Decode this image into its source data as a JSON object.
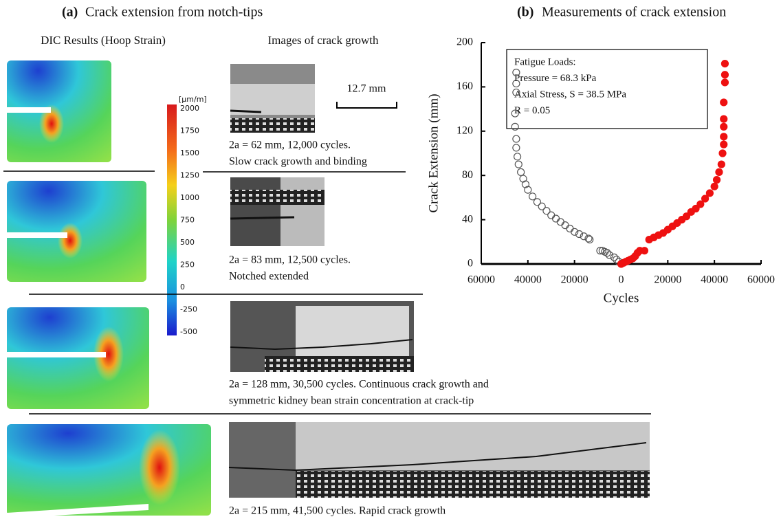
{
  "panel_a": {
    "label": "(a)",
    "title": "Crack extension from notch-tips",
    "dic_header": "DIC Results (Hoop Strain)",
    "images_header": "Images of crack growth",
    "scale_label": "12.7 mm",
    "colorbar": {
      "unit": "[µm/m]",
      "ticks": [
        2000,
        1750,
        1500,
        1250,
        1000,
        750,
        500,
        250,
        0,
        -250,
        -500
      ]
    },
    "rows": [
      {
        "caption": [
          "2a = 62 mm, 12,000 cycles.",
          "Slow crack growth and binding"
        ]
      },
      {
        "caption": [
          "2a = 83 mm, 12,500 cycles.",
          "Notched extended"
        ]
      },
      {
        "caption": [
          "2a = 128 mm, 30,500 cycles. Continuous crack growth  and",
          "symmetric kidney bean strain concentration at crack-tip"
        ]
      },
      {
        "caption": [
          "2a = 215 mm, 41,500 cycles.  Rapid crack growth"
        ]
      }
    ]
  },
  "chart_data": {
    "type": "scatter",
    "panel_label": "(b)",
    "title": "Measurements of crack extension",
    "x_label": "Cycles",
    "y_label": "Crack Extension (mm)",
    "annotations": [
      "Fatigue Loads:",
      "Pressure = 68.3 kPa",
      "Axial Stress, S = 38.5 MPa",
      "R = 0.05"
    ],
    "xlim": [
      -60000,
      60000
    ],
    "xticks": [
      {
        "value": -60000,
        "label": "60000"
      },
      {
        "value": -40000,
        "label": "40000"
      },
      {
        "value": -20000,
        "label": "20000"
      },
      0,
      20000,
      40000,
      60000
    ],
    "ylim": [
      0,
      200
    ],
    "yticks": [
      0,
      40,
      80,
      120,
      160,
      200
    ],
    "series": [
      {
        "color": "#555555",
        "filled": false,
        "x": [
          -1000,
          -2000,
          -3000,
          -5000,
          -6000,
          -7000,
          -8000,
          -9000,
          -13500,
          -14000,
          -16000,
          -18000,
          -20000,
          -22000,
          -24000,
          -26000,
          -28000,
          -30000,
          -32000,
          -34000,
          -36000,
          -38000,
          -40000,
          -41000,
          -42000,
          -43000,
          -44000,
          -44500,
          -45000,
          -45000,
          -45500,
          -45500,
          -45000,
          -45000,
          -45000
        ],
        "values": [
          2,
          4,
          6,
          8,
          10,
          11,
          12,
          12,
          22,
          23,
          25,
          27,
          29,
          32,
          35,
          38,
          41,
          44,
          48,
          52,
          56,
          61,
          67,
          72,
          77,
          83,
          90,
          97,
          105,
          113,
          124,
          136,
          155,
          163,
          173
        ]
      },
      {
        "color": "#ee1111",
        "filled": true,
        "x": [
          0,
          1000,
          2000,
          3000,
          4000,
          5000,
          6000,
          7000,
          8000,
          10000,
          12000,
          14000,
          16000,
          18000,
          20000,
          22000,
          24000,
          26000,
          28000,
          30000,
          32000,
          34000,
          36000,
          38000,
          40000,
          41000,
          42000,
          43000,
          43500,
          44000,
          44000,
          44000,
          44000,
          44000,
          44500,
          44500,
          44500
        ],
        "values": [
          0,
          1,
          2,
          3,
          4,
          5,
          7,
          10,
          12,
          12,
          22,
          24,
          26,
          28,
          31,
          34,
          37,
          40,
          43,
          47,
          50,
          54,
          59,
          64,
          70,
          76,
          83,
          90,
          100,
          108,
          115,
          124,
          131,
          146,
          164,
          171,
          181
        ]
      }
    ]
  }
}
